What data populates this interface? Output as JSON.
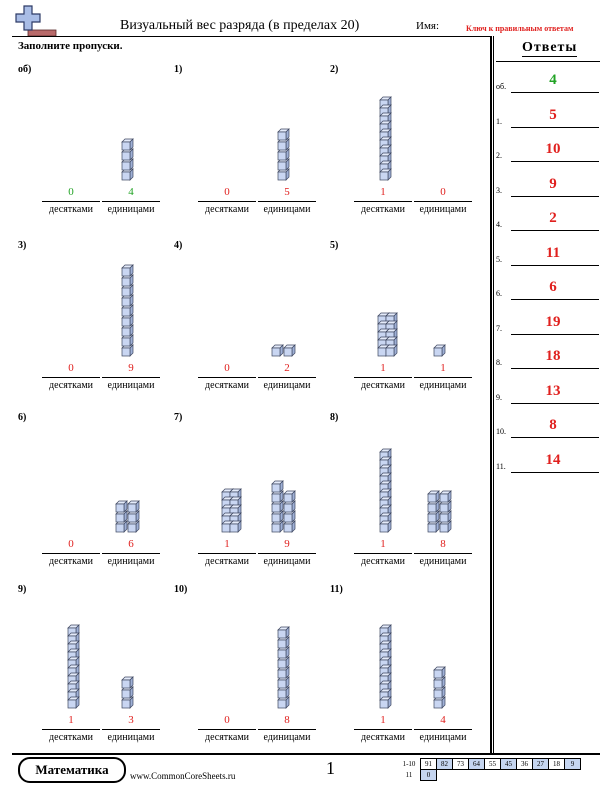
{
  "header": {
    "title": "Визуальный вес разряда (в пределах 20)",
    "name_label": "Имя:",
    "key_note": "Ключ к правильным ответам"
  },
  "instruction": "Заполните пропуски.",
  "labels": {
    "tens": "десятками",
    "ones": "единицами"
  },
  "colors": {
    "red": "#e0201e",
    "green": "#22a325",
    "block_fill": "#c9d6f2",
    "block_stroke": "#3d4660"
  },
  "problems": [
    {
      "label": "об)",
      "tens": 0,
      "ones": 4,
      "tens_text": "0",
      "ones_text": "4",
      "example": true
    },
    {
      "label": "1)",
      "tens": 0,
      "ones": 5,
      "tens_text": "0",
      "ones_text": "5"
    },
    {
      "label": "2)",
      "tens": 1,
      "ones": 0,
      "tens_text": "1",
      "ones_text": "0"
    },
    {
      "label": "3)",
      "tens": 0,
      "ones": 9,
      "tens_text": "0",
      "ones_text": "9"
    },
    {
      "label": "4)",
      "tens": 0,
      "ones": 2,
      "tens_text": "0",
      "ones_text": "2"
    },
    {
      "label": "5)",
      "tens": 1,
      "ones": 1,
      "tens_text": "1",
      "ones_text": "1",
      "tens_style": "flat"
    },
    {
      "label": "6)",
      "tens": 0,
      "ones": 6,
      "tens_text": "0",
      "ones_text": "6"
    },
    {
      "label": "7)",
      "tens": 1,
      "ones": 9,
      "tens_text": "1",
      "ones_text": "9",
      "tens_style": "flat"
    },
    {
      "label": "8)",
      "tens": 1,
      "ones": 8,
      "tens_text": "1",
      "ones_text": "8"
    },
    {
      "label": "9)",
      "tens": 1,
      "ones": 3,
      "tens_text": "1",
      "ones_text": "3"
    },
    {
      "label": "10)",
      "tens": 0,
      "ones": 8,
      "tens_text": "0",
      "ones_text": "8"
    },
    {
      "label": "11)",
      "tens": 1,
      "ones": 4,
      "tens_text": "1",
      "ones_text": "4"
    }
  ],
  "answer_key": {
    "title": "Ответы",
    "items": [
      {
        "label": "об.",
        "value": "4",
        "example": true
      },
      {
        "label": "1.",
        "value": "5"
      },
      {
        "label": "2.",
        "value": "10"
      },
      {
        "label": "3.",
        "value": "9"
      },
      {
        "label": "4.",
        "value": "2"
      },
      {
        "label": "5.",
        "value": "11"
      },
      {
        "label": "6.",
        "value": "6"
      },
      {
        "label": "7.",
        "value": "19"
      },
      {
        "label": "8.",
        "value": "18"
      },
      {
        "label": "9.",
        "value": "13"
      },
      {
        "label": "10.",
        "value": "8"
      },
      {
        "label": "11.",
        "value": "14"
      }
    ]
  },
  "footer": {
    "brand": "Математика",
    "site": "www.CommonCoreSheets.ru",
    "page_number": "1",
    "score_rows": [
      {
        "label": "1-10",
        "cells": [
          "91",
          "82",
          "73",
          "64",
          "55",
          "45",
          "36",
          "27",
          "18",
          "9"
        ]
      },
      {
        "label": "11",
        "cells": [
          "0"
        ]
      }
    ]
  }
}
